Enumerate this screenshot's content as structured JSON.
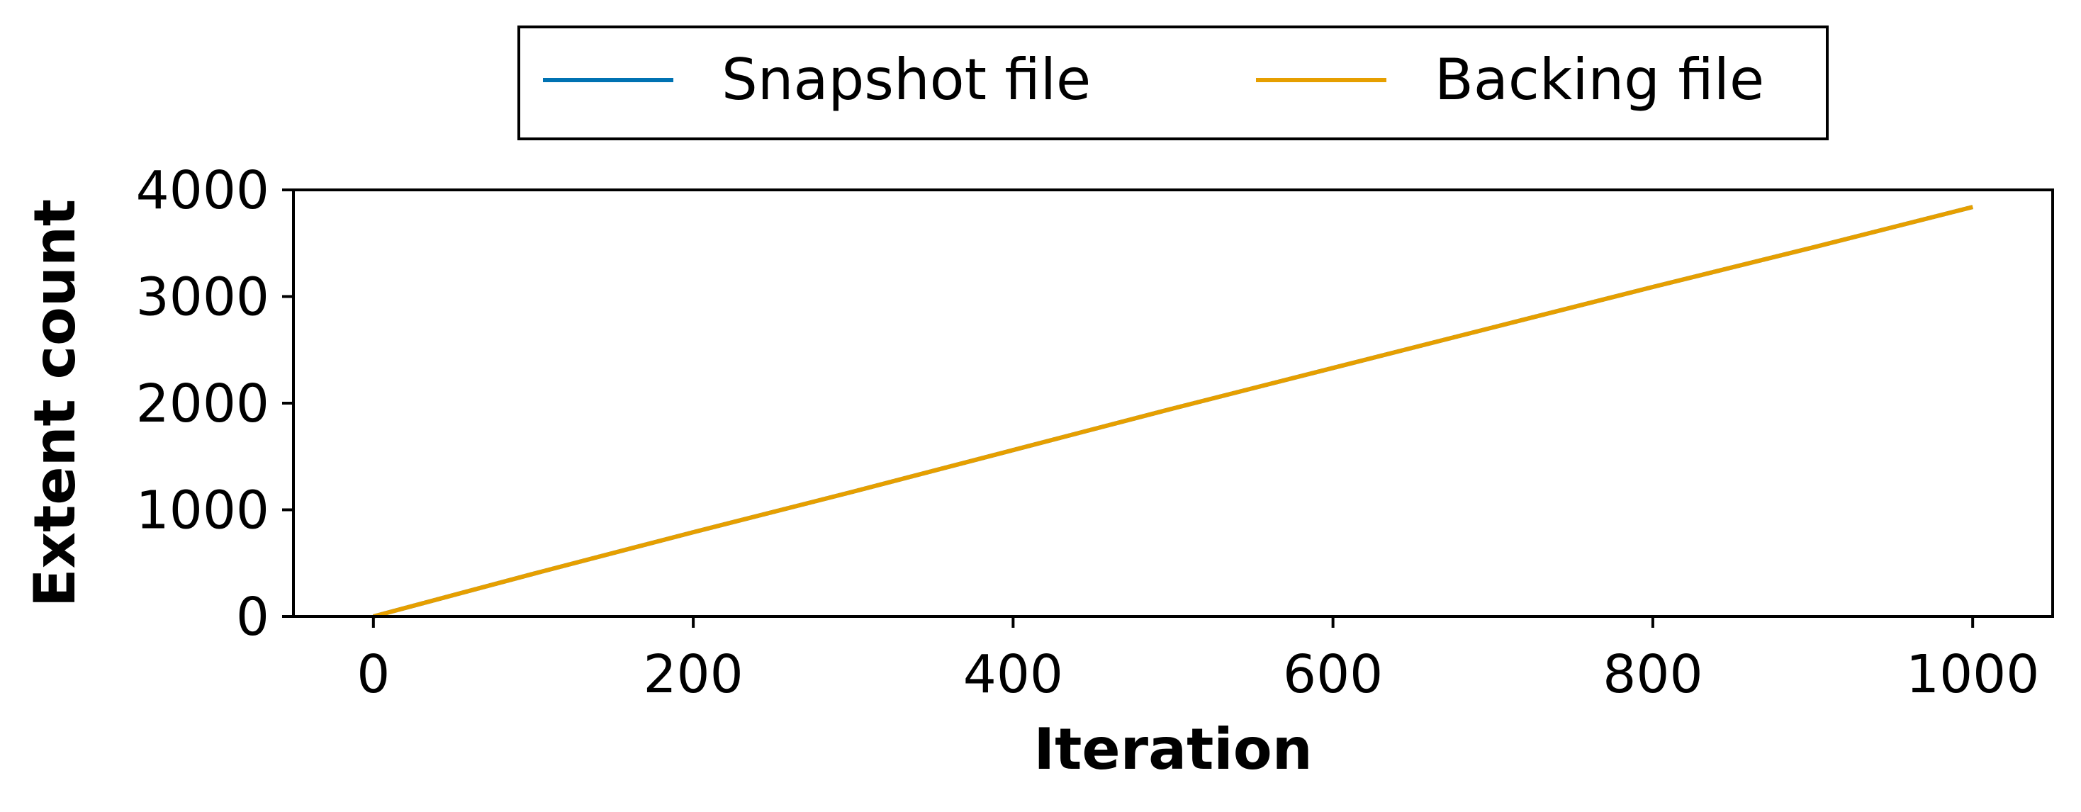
{
  "chart_data": {
    "type": "line",
    "xlabel": "Iteration",
    "ylabel": "Extent count",
    "xlim": [
      -50,
      1050
    ],
    "ylim": [
      0,
      4000
    ],
    "xticks": [
      0,
      200,
      400,
      600,
      800,
      1000
    ],
    "yticks": [
      0,
      1000,
      2000,
      3000,
      4000
    ],
    "x_tick_labels": [
      "0",
      "200",
      "400",
      "600",
      "800",
      "1000"
    ],
    "y_tick_labels": [
      "0",
      "1000",
      "2000",
      "3000",
      "4000"
    ],
    "legend_placement": "top-center, outside plot",
    "grid": false,
    "series": [
      {
        "name": "Snapshot file",
        "color": "#0072B2",
        "x": [
          0,
          100,
          200,
          300,
          400,
          500,
          600,
          700,
          800,
          900,
          1000
        ],
        "y": [
          0,
          400,
          790,
          1170,
          1560,
          1950,
          2330,
          2710,
          3090,
          3460,
          3840
        ]
      },
      {
        "name": "Backing file",
        "color": "#E69F00",
        "x": [
          0,
          100,
          200,
          300,
          400,
          500,
          600,
          700,
          800,
          900,
          1000
        ],
        "y": [
          0,
          400,
          790,
          1170,
          1560,
          1950,
          2330,
          2710,
          3090,
          3460,
          3840
        ]
      }
    ]
  }
}
